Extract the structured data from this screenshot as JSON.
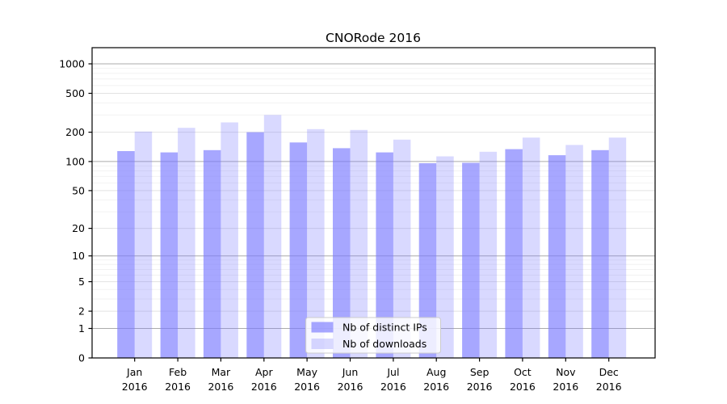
{
  "figure": {
    "background": "#ffffff"
  },
  "chart_data": {
    "type": "bar",
    "title": "CNORode 2016",
    "x": {
      "months": [
        "Jan",
        "Feb",
        "Mar",
        "Apr",
        "May",
        "Jun",
        "Jul",
        "Aug",
        "Sep",
        "Oct",
        "Nov",
        "Dec"
      ],
      "year": "2016"
    },
    "series": [
      {
        "name": "Nb of distinct IPs",
        "color": "#7878ff",
        "alpha": 0.65,
        "values": [
          128,
          124,
          131,
          200,
          157,
          137,
          124,
          96,
          97,
          134,
          116,
          131
        ]
      },
      {
        "name": "Nb of downloads",
        "color": "#7878ff",
        "alpha": 0.28,
        "values": [
          203,
          222,
          252,
          300,
          215,
          211,
          168,
          113,
          126,
          176,
          148,
          176
        ]
      }
    ],
    "y_axis": {
      "ticks": [
        0,
        1,
        2,
        5,
        10,
        20,
        50,
        100,
        200,
        500,
        1000
      ],
      "scale": "log10(value+1)",
      "ymax": 1450
    },
    "grid": {
      "major_values": [
        1,
        10,
        100,
        1000
      ],
      "mid_values": [
        2,
        5,
        20,
        50,
        200,
        500
      ],
      "minor_values": [
        3,
        4,
        6,
        7,
        8,
        9,
        30,
        40,
        60,
        70,
        80,
        90,
        300,
        400,
        600,
        700,
        800,
        900
      ],
      "major_color": "#ababab",
      "mid_color": "#e2e2e2",
      "minor_color": "#f2f2f2"
    },
    "legend": {
      "position": "lower center",
      "background": "#ffffff",
      "border_color": "#cccccc"
    },
    "colors": {
      "axis": "#000000",
      "text": "#000000",
      "background": "#ffffff"
    }
  }
}
